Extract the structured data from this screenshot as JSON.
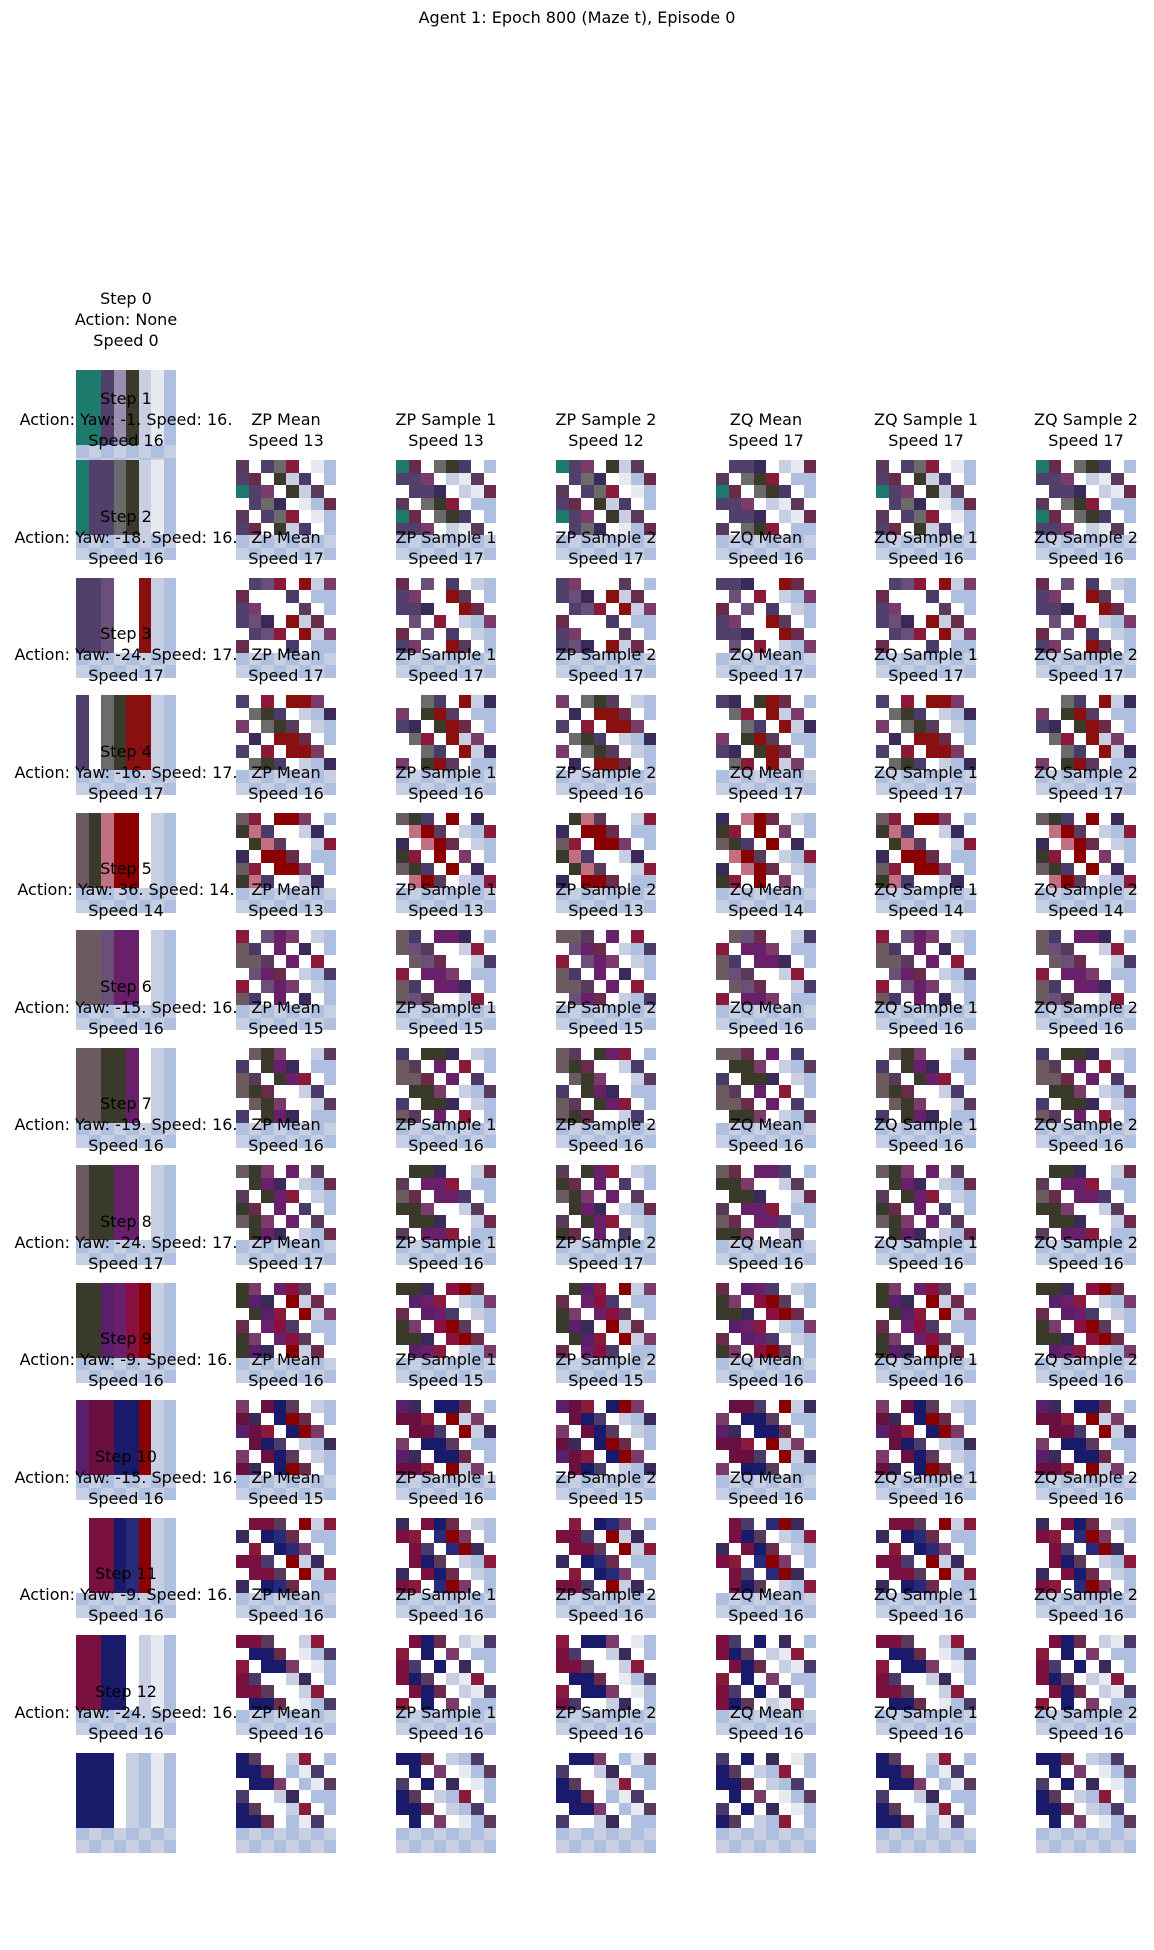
{
  "title": "Agent 1: Epoch 800 (Maze t), Episode 0",
  "column_titles": [
    "ZP Mean",
    "ZP Sample 1",
    "ZP Sample 2",
    "ZQ Mean",
    "ZQ Sample 1",
    "ZQ Sample 2"
  ],
  "steps": [
    {
      "label": "Step 0",
      "action": "Action: None",
      "speed": "Speed 0",
      "preds": []
    },
    {
      "label": "Step 1",
      "action": "Action: Yaw: -1. Speed: 16.",
      "speed": "Speed 16",
      "preds": [
        "Speed 13",
        "Speed 13",
        "Speed 12",
        "Speed 17",
        "Speed 17",
        "Speed 17"
      ]
    },
    {
      "label": "Step 2",
      "action": "Action: Yaw: -18. Speed: 16.",
      "speed": "Speed 16",
      "preds": [
        "Speed 17",
        "Speed 17",
        "Speed 17",
        "Speed 16",
        "Speed 16",
        "Speed 16"
      ]
    },
    {
      "label": "Step 3",
      "action": "Action: Yaw: -24. Speed: 17.",
      "speed": "Speed 17",
      "preds": [
        "Speed 17",
        "Speed 17",
        "Speed 17",
        "Speed 17",
        "Speed 17",
        "Speed 17"
      ]
    },
    {
      "label": "Step 4",
      "action": "Action: Yaw: -16. Speed: 17.",
      "speed": "Speed 17",
      "preds": [
        "Speed 16",
        "Speed 16",
        "Speed 16",
        "Speed 17",
        "Speed 17",
        "Speed 17"
      ]
    },
    {
      "label": "Step 5",
      "action": "Action: Yaw: 36. Speed: 14.",
      "speed": "Speed 14",
      "preds": [
        "Speed 13",
        "Speed 13",
        "Speed 13",
        "Speed 14",
        "Speed 14",
        "Speed 14"
      ]
    },
    {
      "label": "Step 6",
      "action": "Action: Yaw: -15. Speed: 16.",
      "speed": "Speed 16",
      "preds": [
        "Speed 15",
        "Speed 15",
        "Speed 15",
        "Speed 16",
        "Speed 16",
        "Speed 16"
      ]
    },
    {
      "label": "Step 7",
      "action": "Action: Yaw: -19. Speed: 16.",
      "speed": "Speed 16",
      "preds": [
        "Speed 16",
        "Speed 16",
        "Speed 16",
        "Speed 16",
        "Speed 16",
        "Speed 16"
      ]
    },
    {
      "label": "Step 8",
      "action": "Action: Yaw: -24. Speed: 17.",
      "speed": "Speed 17",
      "preds": [
        "Speed 17",
        "Speed 16",
        "Speed 17",
        "Speed 16",
        "Speed 16",
        "Speed 16"
      ]
    },
    {
      "label": "Step 9",
      "action": "Action: Yaw: -9. Speed: 16.",
      "speed": "Speed 16",
      "preds": [
        "Speed 16",
        "Speed 15",
        "Speed 15",
        "Speed 16",
        "Speed 16",
        "Speed 16"
      ]
    },
    {
      "label": "Step 10",
      "action": "Action: Yaw: -15. Speed: 16.",
      "speed": "Speed 16",
      "preds": [
        "Speed 15",
        "Speed 16",
        "Speed 15",
        "Speed 16",
        "Speed 16",
        "Speed 16"
      ]
    },
    {
      "label": "Step 11",
      "action": "Action: Yaw: -9. Speed: 16.",
      "speed": "Speed 16",
      "preds": [
        "Speed 16",
        "Speed 16",
        "Speed 16",
        "Speed 16",
        "Speed 16",
        "Speed 16"
      ]
    },
    {
      "label": "Step 12",
      "action": "Action: Yaw: -24. Speed: 16.",
      "speed": "Speed 16",
      "preds": [
        "Speed 16",
        "Speed 16",
        "Speed 16",
        "Speed 16",
        "Speed 16",
        "Speed 16"
      ]
    }
  ]
}
